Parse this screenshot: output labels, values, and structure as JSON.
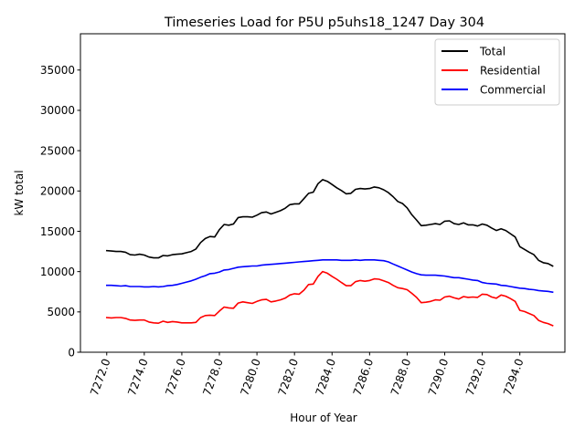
{
  "chart_data": {
    "type": "line",
    "title": "Timeseries Load for P5U p5uhs18_1247  Day 304",
    "xlabel": "Hour of Year",
    "ylabel": "kW total",
    "xlim": [
      7270.6,
      7296.4
    ],
    "ylim": [
      0,
      39500
    ],
    "grid": false,
    "legend_position": "top-right",
    "x_ticks": [
      7272,
      7274,
      7276,
      7278,
      7280,
      7282,
      7284,
      7286,
      7288,
      7290,
      7292,
      7294
    ],
    "x_tick_labels": [
      "7272.0",
      "7274.0",
      "7276.0",
      "7278.0",
      "7280.0",
      "7282.0",
      "7284.0",
      "7286.0",
      "7288.0",
      "7290.0",
      "7292.0",
      "7294.0"
    ],
    "y_ticks": [
      0,
      5000,
      10000,
      15000,
      20000,
      25000,
      30000,
      35000
    ],
    "y_tick_labels": [
      "0",
      "5000",
      "10000",
      "15000",
      "20000",
      "25000",
      "30000",
      "35000"
    ],
    "series": [
      {
        "name": "Total",
        "color": "#000000",
        "x": [
          7272.0,
          7272.25,
          7272.5,
          7272.75,
          7273.0,
          7273.25,
          7273.5,
          7273.75,
          7274.0,
          7274.25,
          7274.5,
          7274.75,
          7275.0,
          7275.25,
          7275.5,
          7275.75,
          7276.0,
          7276.25,
          7276.5,
          7276.75,
          7277.0,
          7277.25,
          7277.5,
          7277.75,
          7278.0,
          7278.25,
          7278.5,
          7278.75,
          7279.0,
          7279.25,
          7279.5,
          7279.75,
          7280.0,
          7280.25,
          7280.5,
          7280.75,
          7281.0,
          7281.25,
          7281.5,
          7281.75,
          7282.0,
          7282.25,
          7282.5,
          7282.75,
          7283.0,
          7283.25,
          7283.5,
          7283.75,
          7284.0,
          7284.25,
          7284.5,
          7284.75,
          7285.0,
          7285.25,
          7285.5,
          7285.75,
          7286.0,
          7286.25,
          7286.5,
          7286.75,
          7287.0,
          7287.25,
          7287.5,
          7287.75,
          7288.0,
          7288.25,
          7288.5,
          7288.75,
          7289.0,
          7289.25,
          7289.5,
          7289.75,
          7290.0,
          7290.25,
          7290.5,
          7290.75,
          7291.0,
          7291.25,
          7291.5,
          7291.75,
          7292.0,
          7292.25,
          7292.5,
          7292.75,
          7293.0,
          7293.25,
          7293.5,
          7293.75,
          7294.0,
          7294.25,
          7294.5,
          7294.75,
          7295.0,
          7295.25,
          7295.5,
          7295.75
        ],
        "values": [
          12600,
          12550,
          12500,
          12500,
          12400,
          12100,
          12050,
          12150,
          12050,
          11800,
          11700,
          11700,
          12000,
          11950,
          12100,
          12150,
          12200,
          12350,
          12500,
          12800,
          13600,
          14100,
          14350,
          14300,
          15200,
          15850,
          15750,
          15900,
          16700,
          16800,
          16800,
          16750,
          17000,
          17300,
          17400,
          17150,
          17350,
          17550,
          17850,
          18300,
          18400,
          18400,
          19050,
          19700,
          19850,
          20900,
          21400,
          21200,
          20800,
          20400,
          20050,
          19650,
          19700,
          20200,
          20300,
          20250,
          20300,
          20500,
          20400,
          20150,
          19800,
          19300,
          18700,
          18450,
          17900,
          17050,
          16400,
          15700,
          15750,
          15850,
          15950,
          15850,
          16250,
          16300,
          15950,
          15850,
          16050,
          15800,
          15800,
          15650,
          15900,
          15750,
          15400,
          15100,
          15300,
          15100,
          14700,
          14300,
          13100,
          12750,
          12400,
          12100,
          11400,
          11100,
          11000,
          10700
        ]
      },
      {
        "name": "Residential",
        "color": "#ff0000",
        "x": [
          7272.0,
          7272.25,
          7272.5,
          7272.75,
          7273.0,
          7273.25,
          7273.5,
          7273.75,
          7274.0,
          7274.25,
          7274.5,
          7274.75,
          7275.0,
          7275.25,
          7275.5,
          7275.75,
          7276.0,
          7276.25,
          7276.5,
          7276.75,
          7277.0,
          7277.25,
          7277.5,
          7277.75,
          7278.0,
          7278.25,
          7278.5,
          7278.75,
          7279.0,
          7279.25,
          7279.5,
          7279.75,
          7280.0,
          7280.25,
          7280.5,
          7280.75,
          7281.0,
          7281.25,
          7281.5,
          7281.75,
          7282.0,
          7282.25,
          7282.5,
          7282.75,
          7283.0,
          7283.25,
          7283.5,
          7283.75,
          7284.0,
          7284.25,
          7284.5,
          7284.75,
          7285.0,
          7285.25,
          7285.5,
          7285.75,
          7286.0,
          7286.25,
          7286.5,
          7286.75,
          7287.0,
          7287.25,
          7287.5,
          7287.75,
          7288.0,
          7288.25,
          7288.5,
          7288.75,
          7289.0,
          7289.25,
          7289.5,
          7289.75,
          7290.0,
          7290.25,
          7290.5,
          7290.75,
          7291.0,
          7291.25,
          7291.5,
          7291.75,
          7292.0,
          7292.25,
          7292.5,
          7292.75,
          7293.0,
          7293.25,
          7293.5,
          7293.75,
          7294.0,
          7294.25,
          7294.5,
          7294.75,
          7295.0,
          7295.25,
          7295.5,
          7295.75
        ],
        "values": [
          4300,
          4250,
          4300,
          4300,
          4200,
          4000,
          3950,
          4000,
          4000,
          3750,
          3650,
          3600,
          3850,
          3700,
          3800,
          3750,
          3650,
          3650,
          3650,
          3700,
          4300,
          4550,
          4600,
          4550,
          5100,
          5600,
          5500,
          5450,
          6100,
          6250,
          6150,
          6050,
          6300,
          6500,
          6550,
          6250,
          6350,
          6500,
          6700,
          7100,
          7250,
          7200,
          7700,
          8400,
          8450,
          9400,
          10000,
          9800,
          9400,
          9050,
          8650,
          8250,
          8250,
          8750,
          8900,
          8800,
          8900,
          9100,
          9050,
          8850,
          8650,
          8300,
          8000,
          7900,
          7750,
          7300,
          6800,
          6150,
          6200,
          6300,
          6500,
          6450,
          6850,
          6950,
          6750,
          6600,
          6900,
          6800,
          6850,
          6800,
          7200,
          7150,
          6850,
          6700,
          7100,
          6950,
          6650,
          6300,
          5200,
          5050,
          4800,
          4550,
          3950,
          3700,
          3550,
          3300
        ]
      },
      {
        "name": "Commercial",
        "color": "#0000ff",
        "x": [
          7272.0,
          7272.25,
          7272.5,
          7272.75,
          7273.0,
          7273.25,
          7273.5,
          7273.75,
          7274.0,
          7274.25,
          7274.5,
          7274.75,
          7275.0,
          7275.25,
          7275.5,
          7275.75,
          7276.0,
          7276.25,
          7276.5,
          7276.75,
          7277.0,
          7277.25,
          7277.5,
          7277.75,
          7278.0,
          7278.25,
          7278.5,
          7278.75,
          7279.0,
          7279.25,
          7279.5,
          7279.75,
          7280.0,
          7280.25,
          7280.5,
          7280.75,
          7281.0,
          7281.25,
          7281.5,
          7281.75,
          7282.0,
          7282.25,
          7282.5,
          7282.75,
          7283.0,
          7283.25,
          7283.5,
          7283.75,
          7284.0,
          7284.25,
          7284.5,
          7284.75,
          7285.0,
          7285.25,
          7285.5,
          7285.75,
          7286.0,
          7286.25,
          7286.5,
          7286.75,
          7287.0,
          7287.25,
          7287.5,
          7287.75,
          7288.0,
          7288.25,
          7288.5,
          7288.75,
          7289.0,
          7289.25,
          7289.5,
          7289.75,
          7290.0,
          7290.25,
          7290.5,
          7290.75,
          7291.0,
          7291.25,
          7291.5,
          7291.75,
          7292.0,
          7292.25,
          7292.5,
          7292.75,
          7293.0,
          7293.25,
          7293.5,
          7293.75,
          7294.0,
          7294.25,
          7294.5,
          7294.75,
          7295.0,
          7295.25,
          7295.5,
          7295.75
        ],
        "values": [
          8300,
          8300,
          8250,
          8200,
          8250,
          8150,
          8150,
          8150,
          8100,
          8100,
          8150,
          8100,
          8150,
          8250,
          8300,
          8400,
          8550,
          8700,
          8850,
          9050,
          9300,
          9500,
          9750,
          9800,
          9950,
          10200,
          10250,
          10400,
          10550,
          10600,
          10650,
          10700,
          10700,
          10800,
          10850,
          10900,
          10950,
          11000,
          11050,
          11100,
          11150,
          11200,
          11250,
          11300,
          11350,
          11400,
          11450,
          11450,
          11450,
          11450,
          11400,
          11400,
          11400,
          11450,
          11400,
          11450,
          11450,
          11450,
          11400,
          11350,
          11200,
          10950,
          10700,
          10450,
          10200,
          9950,
          9750,
          9600,
          9550,
          9550,
          9550,
          9500,
          9450,
          9350,
          9250,
          9250,
          9150,
          9050,
          8950,
          8900,
          8650,
          8550,
          8500,
          8450,
          8300,
          8250,
          8150,
          8050,
          7950,
          7900,
          7800,
          7750,
          7650,
          7600,
          7550,
          7450
        ]
      }
    ]
  }
}
